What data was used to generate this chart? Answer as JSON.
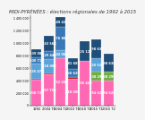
{
  "title": "MIDI-PYRÉNÉES : élections régionales de 1992 à 2015",
  "stacks": [
    {
      "year": "1992",
      "layers": [
        {
          "value": 408737,
          "color": "#ff69b4"
        },
        {
          "value": 15000,
          "color": "#cc0000"
        },
        {
          "value": 5000,
          "color": "#00aa00"
        },
        {
          "value": 235478,
          "color": "#5ba3d9"
        },
        {
          "value": 100717,
          "color": "#3a78b5"
        },
        {
          "value": 139984,
          "color": "#1f4e79"
        }
      ]
    },
    {
      "year": "2004 T1",
      "layers": [
        {
          "value": 497750,
          "color": "#ff69b4"
        },
        {
          "value": 20000,
          "color": "#cc0000"
        },
        {
          "value": 218008,
          "color": "#5ba3d9"
        },
        {
          "value": 129448,
          "color": "#3a78b5"
        },
        {
          "value": 243568,
          "color": "#1f4e79"
        }
      ]
    },
    {
      "year": "2004 T2",
      "layers": [
        {
          "value": 752209,
          "color": "#ff69b4"
        },
        {
          "value": 132008,
          "color": "#5ba3d9"
        },
        {
          "value": 376802,
          "color": "#3a78b5"
        },
        {
          "value": 149427,
          "color": "#1f4e79"
        }
      ]
    },
    {
      "year": "2010 T1",
      "layers": [
        {
          "value": 418098,
          "color": "#ff69b4"
        },
        {
          "value": 30000,
          "color": "#cc0000"
        },
        {
          "value": 5000,
          "color": "#00aa00"
        },
        {
          "value": 5000,
          "color": "#5ba3d9"
        },
        {
          "value": 120625,
          "color": "#3a78b5"
        },
        {
          "value": 181683,
          "color": "#1f4e79"
        }
      ]
    },
    {
      "year": "2010 T2",
      "layers": [
        {
          "value": 705440,
          "color": "#ff69b4"
        },
        {
          "value": 325122,
          "color": "#1f4e79"
        }
      ]
    },
    {
      "year": "2015 T1",
      "layers": [
        {
          "value": 394628,
          "color": "#ff69b4"
        },
        {
          "value": 138299,
          "color": "#70ad47"
        },
        {
          "value": 220526,
          "color": "#5ba3d9"
        },
        {
          "value": 298636,
          "color": "#1f4e79"
        }
      ]
    },
    {
      "year": "2015 T2",
      "layers": [
        {
          "value": 394628,
          "color": "#ff69b4"
        },
        {
          "value": 138299,
          "color": "#70ad47"
        },
        {
          "value": 298636,
          "color": "#1f4e79"
        }
      ]
    }
  ],
  "ylim": [
    0,
    1450000
  ],
  "background_color": "#f5f5f5",
  "title_fontsize": 3.8,
  "label_fontsize": 2.5
}
